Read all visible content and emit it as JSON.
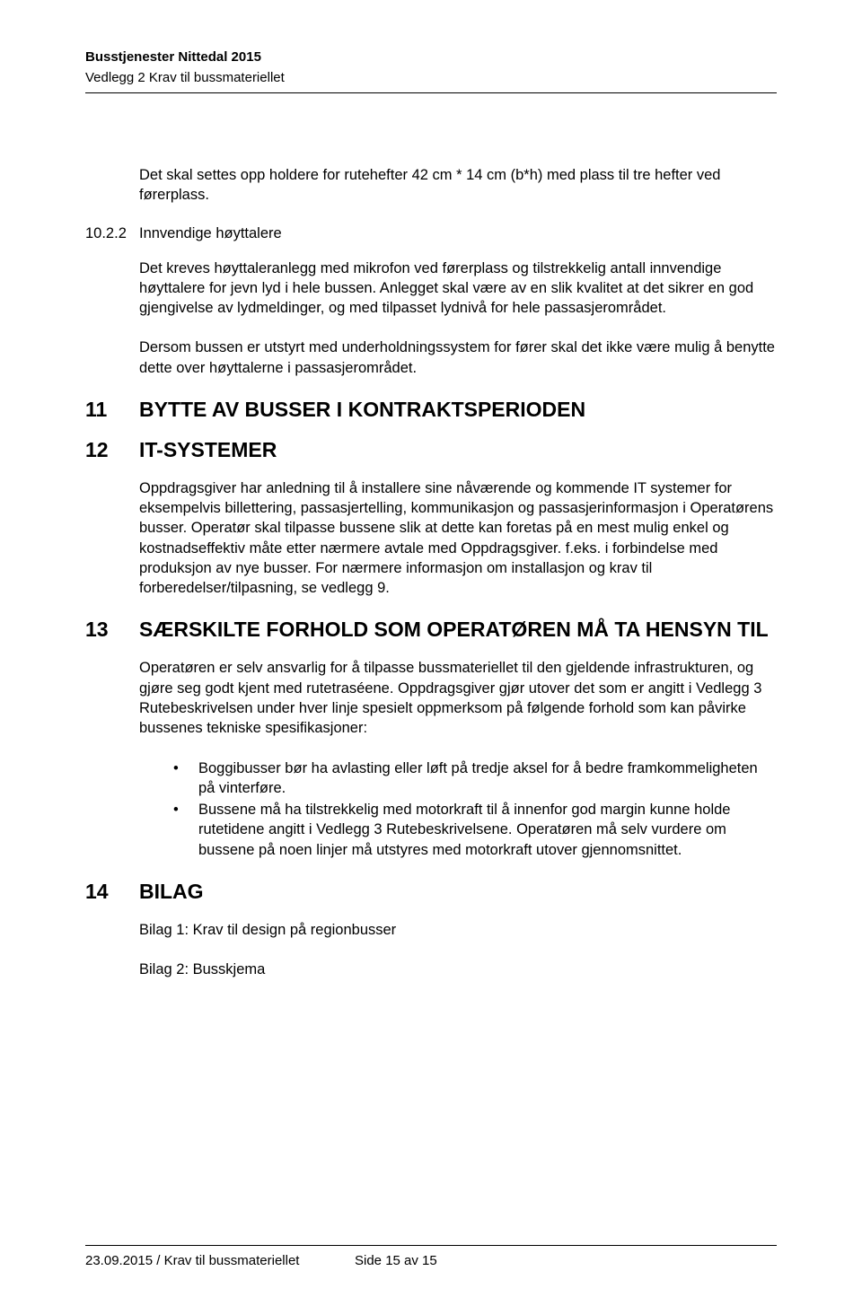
{
  "header": {
    "line1": "Busstjenester Nittedal 2015",
    "line2": "Vedlegg 2 Krav til bussmateriellet"
  },
  "body": {
    "intro_para": "Det skal settes opp holdere for rutehefter 42 cm * 14 cm (b*h) med plass til tre hefter ved førerplass.",
    "sub_10_2_2": {
      "num": "10.2.2",
      "title": "Innvendige høyttalere",
      "p1": "Det kreves høyttaleranlegg med mikrofon ved førerplass og tilstrekkelig antall innvendige høyttalere for jevn lyd i hele bussen. Anlegget skal være av en slik kvalitet at det sikrer en god gjengivelse av lydmeldinger, og med tilpasset lydnivå for hele passasjerområdet.",
      "p2": "Dersom bussen er utstyrt med underholdningssystem for fører skal det ikke være mulig å benytte dette over høyttalerne i passasjerområdet."
    },
    "sec11": {
      "num": "11",
      "title": "BYTTE AV BUSSER I KONTRAKTSPERIODEN"
    },
    "sec12": {
      "num": "12",
      "title": "IT-SYSTEMER",
      "p1": "Oppdragsgiver har anledning til å installere sine nåværende og kommende IT systemer for eksempelvis billettering, passasjertelling, kommunikasjon og passasjerinformasjon i Operatørens busser. Operatør skal tilpasse bussene slik at dette kan foretas på en mest mulig enkel og kostnadseffektiv måte etter nærmere avtale med Oppdragsgiver. f.eks. i forbindelse med produksjon av nye busser. For nærmere informasjon om installasjon og krav til forberedelser/tilpasning, se vedlegg 9."
    },
    "sec13": {
      "num": "13",
      "title": "SÆRSKILTE FORHOLD SOM OPERATØREN MÅ TA HENSYN TIL",
      "p1": "Operatøren er selv ansvarlig for å tilpasse bussmateriellet til den gjeldende infrastrukturen, og gjøre seg godt kjent med rutetraséene. Oppdragsgiver gjør utover det som er angitt i Vedlegg 3 Rutebeskrivelsen under hver linje spesielt oppmerksom på følgende forhold som kan påvirke bussenes tekniske spesifikasjoner:",
      "bullets": [
        "Boggibusser bør ha avlasting eller løft på tredje aksel for å bedre framkommeligheten på vinterføre.",
        "Bussene må ha tilstrekkelig med motorkraft til å innenfor god margin kunne holde rutetidene angitt i Vedlegg 3 Rutebeskrivelsene. Operatøren må selv vurdere om bussene på noen linjer må utstyres med motorkraft utover gjennomsnittet."
      ]
    },
    "sec14": {
      "num": "14",
      "title": "BILAG",
      "p1": "Bilag 1: Krav til design på regionbusser",
      "p2": "Bilag 2: Busskjema"
    }
  },
  "footer": {
    "left": "23.09.2015  /  Krav til bussmateriellet",
    "right": "Side 15 av 15"
  },
  "bullet_char": "•"
}
